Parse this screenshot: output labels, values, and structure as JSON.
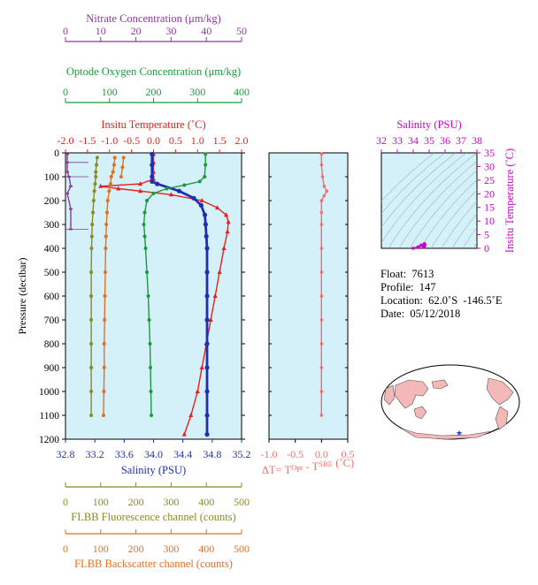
{
  "chart_data": [
    {
      "type": "line",
      "title": "",
      "xaxes": [
        {
          "label": "Nitrate Concentration (μm/kg)",
          "color": "#8b3a9c",
          "range": [
            0,
            50
          ],
          "ticks": [
            "0",
            "10",
            "20",
            "30",
            "40",
            "50"
          ]
        },
        {
          "label": "Optode Oxygen Concentration (μm/kg)",
          "color": "#1a9a3a",
          "range": [
            0,
            400
          ],
          "ticks": [
            "0",
            "100",
            "200",
            "300",
            "400"
          ]
        },
        {
          "label": "Insitu Temperature (˚C)",
          "color": "#e8201c",
          "range": [
            -2.0,
            2.0
          ],
          "ticks": [
            "-2.0",
            "-1.5",
            "-1.0",
            "-0.5",
            "0.0",
            "0.5",
            "1.0",
            "1.5",
            "2.0"
          ]
        },
        {
          "label": "Salinity (PSU)",
          "color": "#1f2fb0",
          "range": [
            32.8,
            35.2
          ],
          "ticks": [
            "32.8",
            "33.2",
            "33.6",
            "34.0",
            "34.4",
            "34.8",
            "35.2"
          ]
        },
        {
          "label": "FLBB Fluorescence channel (counts)",
          "color": "#8a8a20",
          "range": [
            0,
            500
          ],
          "ticks": [
            "0",
            "100",
            "200",
            "300",
            "400",
            "500"
          ]
        },
        {
          "label": "FLBB Backscatter channel (counts)",
          "color": "#e07020",
          "range": [
            0,
            500
          ],
          "ticks": [
            "0",
            "100",
            "200",
            "300",
            "400",
            "500"
          ]
        }
      ],
      "ylabel": "Pressure (decibar)",
      "ylim": [
        1200,
        0
      ],
      "yticks": [
        "0",
        "100",
        "200",
        "300",
        "400",
        "500",
        "600",
        "700",
        "800",
        "900",
        "1000",
        "1100",
        "1200"
      ],
      "series": [
        {
          "name": "Insitu Temperature",
          "axis": 2,
          "color": "#e8201c",
          "points": [
            [
              0.0,
              5
            ],
            [
              0.0,
              40
            ],
            [
              0.0,
              80
            ],
            [
              0.0,
              110
            ],
            [
              -0.3,
              130
            ],
            [
              -1.2,
              140
            ],
            [
              -0.8,
              150
            ],
            [
              -0.3,
              160
            ],
            [
              0.4,
              175
            ],
            [
              1.1,
              200
            ],
            [
              1.45,
              230
            ],
            [
              1.65,
              260
            ],
            [
              1.7,
              290
            ],
            [
              1.68,
              330
            ],
            [
              1.6,
              400
            ],
            [
              1.5,
              500
            ],
            [
              1.4,
              600
            ],
            [
              1.3,
              700
            ],
            [
              1.2,
              800
            ],
            [
              1.1,
              900
            ],
            [
              1.0,
              1000
            ],
            [
              0.85,
              1100
            ],
            [
              0.7,
              1180
            ]
          ]
        },
        {
          "name": "Salinity",
          "axis": 3,
          "color": "#1f2fb0",
          "points": [
            [
              33.98,
              5
            ],
            [
              33.98,
              50
            ],
            [
              33.98,
              100
            ],
            [
              33.98,
              120
            ],
            [
              34.05,
              130
            ],
            [
              34.35,
              160
            ],
            [
              34.55,
              190
            ],
            [
              34.65,
              220
            ],
            [
              34.7,
              260
            ],
            [
              34.71,
              300
            ],
            [
              34.72,
              350
            ],
            [
              34.73,
              400
            ],
            [
              34.73,
              500
            ],
            [
              34.73,
              600
            ],
            [
              34.73,
              700
            ],
            [
              34.73,
              800
            ],
            [
              34.73,
              900
            ],
            [
              34.73,
              1000
            ],
            [
              34.73,
              1100
            ],
            [
              34.73,
              1180
            ]
          ]
        },
        {
          "name": "Optode Oxygen",
          "axis": 1,
          "color": "#1a9a3a",
          "points": [
            [
              318,
              5
            ],
            [
              318,
              50
            ],
            [
              316,
              100
            ],
            [
              305,
              120
            ],
            [
              270,
              135
            ],
            [
              230,
              150
            ],
            [
              200,
              170
            ],
            [
              185,
              200
            ],
            [
              180,
              250
            ],
            [
              178,
              300
            ],
            [
              180,
              350
            ],
            [
              182,
              400
            ],
            [
              185,
              500
            ],
            [
              188,
              600
            ],
            [
              190,
              700
            ],
            [
              192,
              800
            ],
            [
              193,
              900
            ],
            [
              194,
              1000
            ],
            [
              195,
              1100
            ]
          ]
        },
        {
          "name": "Nitrate",
          "axis": 0,
          "color": "#8b3a9c",
          "points": [
            [
              0.5,
              5
            ],
            [
              0.5,
              40
            ],
            [
              0.5,
              80
            ],
            [
              1,
              100
            ],
            [
              1.5,
              140
            ],
            [
              0.5,
              170
            ],
            [
              1.5,
              235
            ],
            [
              1.5,
              320
            ]
          ]
        },
        {
          "name": "FLBB Fluorescence",
          "axis": 4,
          "color": "#8a8a20",
          "points": [
            [
              90,
              20
            ],
            [
              88,
              50
            ],
            [
              86,
              80
            ],
            [
              86,
              100
            ],
            [
              84,
              130
            ],
            [
              82,
              160
            ],
            [
              80,
              200
            ],
            [
              78,
              250
            ],
            [
              76,
              300
            ],
            [
              75,
              350
            ],
            [
              74,
              400
            ],
            [
              73,
              500
            ],
            [
              73,
              600
            ],
            [
              73,
              700
            ],
            [
              73,
              800
            ],
            [
              73,
              900
            ],
            [
              73,
              1000
            ],
            [
              73,
              1100
            ]
          ]
        },
        {
          "name": "FLBB Backscatter",
          "axis": 5,
          "color": "#e07020",
          "points": [
            [
              140,
              20
            ],
            [
              138,
              50
            ],
            [
              135,
              80
            ],
            [
              130,
              100
            ],
            [
              128,
              130
            ],
            [
              124,
              160
            ],
            [
              120,
              200
            ],
            [
              118,
              250
            ],
            [
              116,
              300
            ],
            [
              115,
              350
            ],
            [
              114,
              400
            ],
            [
              113,
              500
            ],
            [
              112,
              600
            ],
            [
              111,
              700
            ],
            [
              110,
              800
            ],
            [
              110,
              900
            ],
            [
              109,
              1000
            ],
            [
              108,
              1100
            ]
          ]
        },
        {
          "name": "Backscatter secondary",
          "axis": 5,
          "color": "#e07020",
          "points": [
            [
              165,
              20
            ],
            [
              162,
              60
            ],
            [
              158,
              100
            ]
          ]
        }
      ]
    },
    {
      "type": "line",
      "xlabel": "ΔT= TOpt - TSBE (˚C)",
      "xlim": [
        -1.0,
        0.5
      ],
      "xticks": [
        "-1.0",
        "-0.5",
        "0.0",
        "0.5"
      ],
      "ylim": [
        1200,
        0
      ],
      "series": [
        {
          "name": "ΔT",
          "color": "#f07070",
          "points": [
            [
              0.0,
              5
            ],
            [
              0.0,
              50
            ],
            [
              0.02,
              100
            ],
            [
              0.05,
              140
            ],
            [
              0.1,
              160
            ],
            [
              0.05,
              180
            ],
            [
              0.0,
              200
            ],
            [
              0.0,
              250
            ],
            [
              0.0,
              300
            ],
            [
              0.0,
              400
            ],
            [
              0.0,
              500
            ],
            [
              0.0,
              600
            ],
            [
              0.0,
              700
            ],
            [
              0.0,
              800
            ],
            [
              0.0,
              900
            ],
            [
              0.0,
              1000
            ],
            [
              0.0,
              1100
            ]
          ]
        }
      ]
    },
    {
      "type": "scatter",
      "xlabel": "Salinity (PSU)",
      "ylabel": "Insitu Temperature (˚C)",
      "color": "#cc00cc",
      "xlim": [
        32,
        38
      ],
      "ylim": [
        0,
        35
      ],
      "xticks": [
        "32",
        "33",
        "34",
        "35",
        "36",
        "37",
        "38"
      ],
      "yticks": [
        "0",
        "5",
        "10",
        "15",
        "20",
        "25",
        "30",
        "35"
      ],
      "points": [
        [
          34.7,
          0.5
        ],
        [
          34.72,
          1.0
        ],
        [
          34.73,
          1.5
        ],
        [
          34.7,
          1.7
        ],
        [
          34.5,
          1.2
        ],
        [
          34.3,
          0.5
        ],
        [
          34.0,
          0.0
        ],
        [
          34.6,
          0.9
        ]
      ]
    }
  ],
  "info": {
    "float": "Float:  7613",
    "profile": "Profile:  147",
    "location": "Location:  62.0˚S  -146.5˚E",
    "date": "Date:  05/12/2018"
  },
  "map": {
    "marker_lat": -62.0,
    "marker_lon": -146.5,
    "marker_color": "#2040d0"
  }
}
